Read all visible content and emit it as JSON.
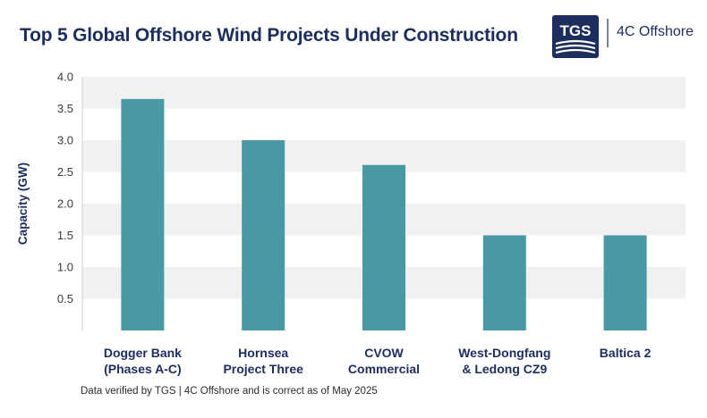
{
  "header": {
    "title": "Top 5 Global Offshore Wind Projects Under Construction",
    "logo_primary": "TGS",
    "logo_secondary": "4C Offshore"
  },
  "footnote": "Data verified by TGS | 4C Offshore and is correct as of May 2025",
  "colors": {
    "bar": "#4899a4",
    "band": "#f1f1f1",
    "title": "#1c2e5e",
    "logo_bg": "#1c2e5e"
  },
  "chart_data": {
    "type": "bar",
    "categories": [
      [
        "Dogger Bank",
        "(Phases A-C)"
      ],
      [
        "Hornsea",
        "Project Three"
      ],
      [
        "CVOW",
        "Commercial"
      ],
      [
        "West-Dongfang",
        "& Ledong CZ9"
      ],
      [
        "Baltica 2"
      ]
    ],
    "values": [
      3.65,
      3.0,
      2.61,
      1.5,
      1.5
    ],
    "title": "Top 5 Global Offshore Wind Projects Under Construction",
    "xlabel": "",
    "ylabel": "Capacity (GW)",
    "ylim": [
      0,
      4.0
    ],
    "yticks": [
      "0.5",
      "1.0",
      "1.5",
      "2.0",
      "2.5",
      "3.0",
      "3.5",
      "4.0"
    ],
    "grid": "alternating horizontal bands",
    "legend": "none"
  }
}
